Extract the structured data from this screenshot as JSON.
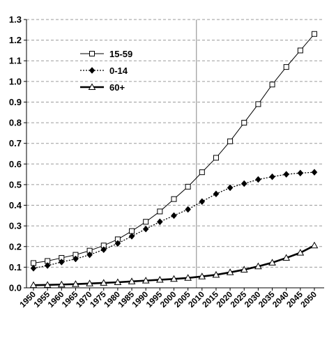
{
  "chart_data": {
    "type": "line",
    "title": "",
    "xlabel": "",
    "ylabel": "",
    "ylim": [
      0,
      1.3
    ],
    "yticks": [
      "0.0",
      "0.1",
      "0.2",
      "0.3",
      "0.4",
      "0.5",
      "0.6",
      "0.7",
      "0.8",
      "0.9",
      "1.0",
      "1.1",
      "1.2",
      "1.3"
    ],
    "x": [
      1950,
      1955,
      1960,
      1965,
      1970,
      1975,
      1980,
      1985,
      1990,
      1995,
      2000,
      2005,
      2010,
      2015,
      2020,
      2025,
      2030,
      2035,
      2040,
      2045,
      2050
    ],
    "grid": "horizontal dashed",
    "reference_line_x": 2008,
    "legend_position": "top-left",
    "series": [
      {
        "name": "15-59",
        "marker": "square-open",
        "line_style": "solid-thin",
        "values": [
          0.12,
          0.13,
          0.145,
          0.16,
          0.18,
          0.205,
          0.235,
          0.275,
          0.32,
          0.37,
          0.43,
          0.49,
          0.56,
          0.63,
          0.71,
          0.8,
          0.89,
          0.985,
          1.07,
          1.15,
          1.23
        ]
      },
      {
        "name": "0-14",
        "marker": "diamond-filled",
        "line_style": "dotted",
        "values": [
          0.095,
          0.108,
          0.125,
          0.14,
          0.16,
          0.185,
          0.215,
          0.25,
          0.285,
          0.32,
          0.35,
          0.38,
          0.418,
          0.455,
          0.485,
          0.505,
          0.525,
          0.538,
          0.55,
          0.556,
          0.56
        ]
      },
      {
        "name": "60+",
        "marker": "triangle-open",
        "line_style": "solid-thick",
        "values": [
          0.013,
          0.014,
          0.016,
          0.018,
          0.021,
          0.024,
          0.027,
          0.031,
          0.035,
          0.039,
          0.043,
          0.048,
          0.055,
          0.063,
          0.075,
          0.088,
          0.104,
          0.122,
          0.145,
          0.17,
          0.205
        ]
      }
    ]
  }
}
